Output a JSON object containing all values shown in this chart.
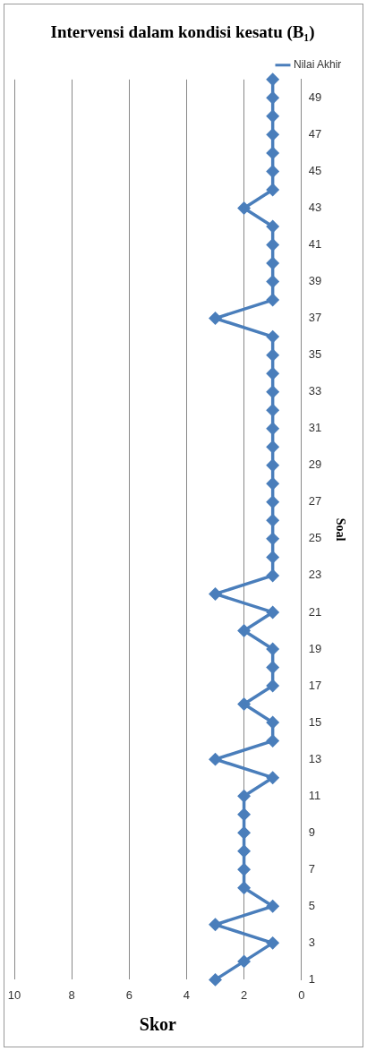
{
  "chart_data": {
    "type": "line",
    "orientation": "horizontal",
    "title": "Intervensi dalam kondisi kesatu (B₁)",
    "ylabel": "Soal",
    "xlabel": "Skor",
    "categories": [
      null,
      "49",
      null,
      "47",
      null,
      "45",
      null,
      "43",
      null,
      "41",
      null,
      "39",
      null,
      "37",
      null,
      "35",
      null,
      "33",
      null,
      "31",
      null,
      "29",
      null,
      "27",
      null,
      "25",
      null,
      "23",
      null,
      "21",
      null,
      "19",
      null,
      "17",
      null,
      "15",
      null,
      "13",
      null,
      "11",
      null,
      "9",
      null,
      "7",
      null,
      "5",
      null,
      "3",
      null,
      "1"
    ],
    "series": [
      {
        "name": "Nilai Akhir",
        "color": "#4a7ebb",
        "values": [
          1,
          1,
          1,
          1,
          1,
          1,
          1,
          2,
          1,
          1,
          1,
          1,
          1,
          3,
          1,
          1,
          1,
          1,
          1,
          1,
          1,
          1,
          1,
          1,
          1,
          1,
          1,
          1,
          3,
          1,
          2,
          1,
          1,
          1,
          2,
          1,
          1,
          3,
          1,
          2,
          2,
          2,
          2,
          2,
          2,
          1,
          3,
          1,
          2,
          3
        ]
      }
    ],
    "xlim": [
      10,
      0
    ],
    "xticks": [
      0,
      2,
      4,
      6,
      8,
      10
    ],
    "grid": "x",
    "legend": "top right",
    "marker": "diamond",
    "line_style": "solid"
  }
}
